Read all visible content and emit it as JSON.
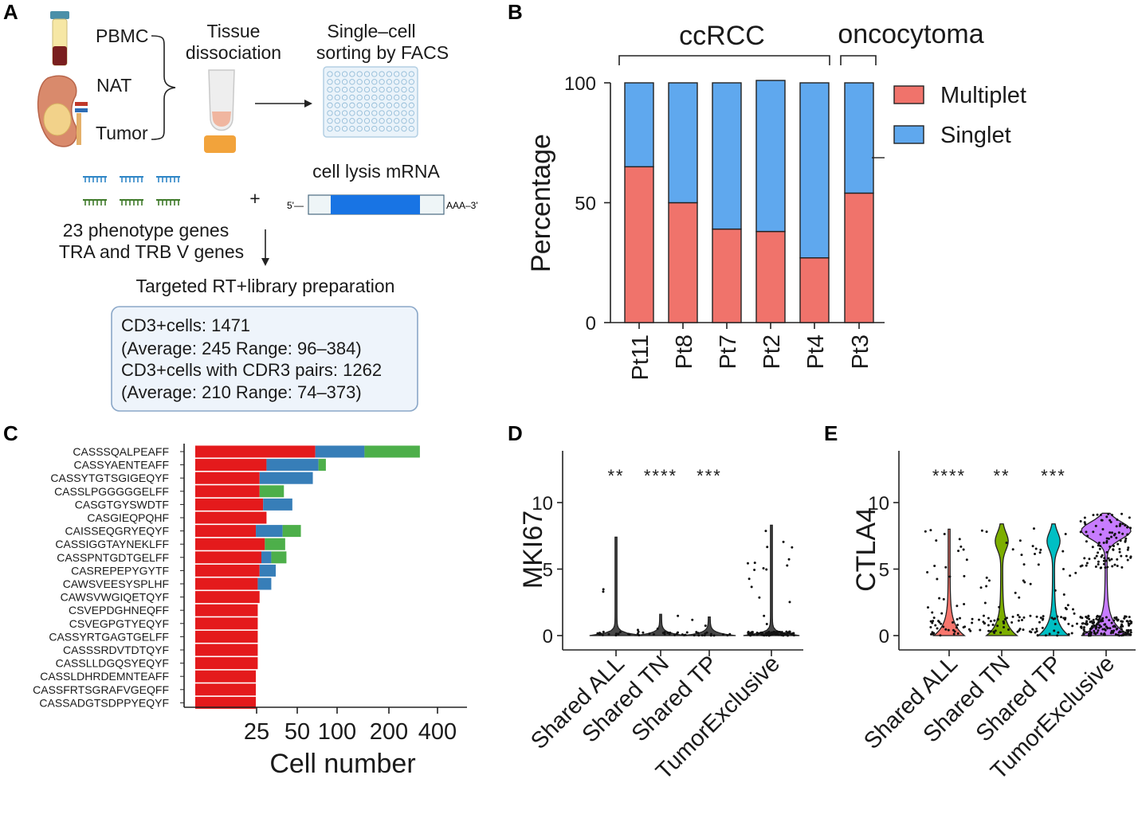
{
  "panels": {
    "a": "A",
    "b": "B",
    "c": "C",
    "d": "D",
    "e": "E"
  },
  "panel_a": {
    "sources": [
      "PBMC",
      "NAT",
      "Tumor"
    ],
    "step1": [
      "Tissue",
      "dissociation"
    ],
    "step2": [
      "Single–cell",
      "sorting by FACS"
    ],
    "lysis_label": "cell lysis mRNA",
    "prime5": "5'—",
    "prime3": "AAA–3'",
    "plus": "+",
    "genes": [
      "23 phenotype genes",
      "TRA and TRB V genes"
    ],
    "prep": "Targeted RT+library preparation",
    "summary": [
      "CD3+cells:  1471",
      "(Average:  245 Range: 96–384)",
      "CD3+cells  with CDR3 pairs: 1262",
      "(Average:  210 Range: 74–373)"
    ]
  },
  "colors": {
    "multiplet": "#f0736b",
    "singlet": "#5fa8ee",
    "c_red": "#e41a1c",
    "c_blue": "#377eb8",
    "c_green": "#4daf4a",
    "violin_all": "#f8766d",
    "violin_tn": "#7cae00",
    "violin_tp": "#00bfc4",
    "violin_te": "#c77cff"
  },
  "chart_data": [
    {
      "type": "bar",
      "title": "",
      "group_labels": [
        "ccRCC",
        "oncocytoma"
      ],
      "categories": [
        "Pt11",
        "Pt8",
        "Pt7",
        "Pt2",
        "Pt4",
        "Pt3"
      ],
      "series": [
        {
          "name": "Multiplet",
          "values": [
            65,
            50,
            39,
            38,
            27,
            54
          ]
        },
        {
          "name": "Singlet",
          "values": [
            35,
            50,
            61,
            63,
            73,
            46
          ]
        }
      ],
      "ylabel": "Percentage",
      "yticks": [
        "0",
        "50",
        "100"
      ],
      "ylim": [
        0,
        100
      ]
    },
    {
      "type": "bar",
      "orientation": "horizontal",
      "xlabel": "Cell number",
      "xticks": [
        "25",
        "50",
        "100",
        "200",
        "400"
      ],
      "xscale": "log",
      "categories": [
        "CASSSQALPEAFF",
        "CASSYAENTEAFF",
        "CASSYTGTSGIGEQYF",
        "CASSLPGGGGGELFF",
        "CASGTGYSWDTF",
        "CASGIEQPQHF",
        "CAISSEQGRYEQYF",
        "CASSIGGTAYNEKLFF",
        "CASSPNTGDTGELFF",
        "CASREPEPYGYTF",
        "CAWSVEESYSPLHF",
        "CAWSVWGIQETQYF",
        "CSVEPDGHNEQFF",
        "CSVEGPGTYEQYF",
        "CASSYRTGAGTGELFF",
        "CASSSRDVTDTQYF",
        "CASSLLDGQSYEQYF",
        "CASSLDHRDEMNTEAFF",
        "CASSFRTSGRAFVGEQFF",
        "CASSADGTSDPPYEQYF"
      ],
      "series": [
        {
          "name": "red",
          "values": [
            70,
            27,
            23,
            23,
            25,
            27,
            21,
            26,
            24,
            23,
            22,
            23,
            22,
            22,
            22,
            22,
            22,
            21,
            21,
            21
          ]
        },
        {
          "name": "blue",
          "values": [
            88,
            47,
            44,
            0,
            21,
            0,
            17,
            0,
            6,
            10,
            8,
            0,
            0,
            0,
            0,
            0,
            0,
            0,
            0,
            0
          ]
        },
        {
          "name": "green",
          "values": [
            212,
            10,
            0,
            16,
            0,
            0,
            16,
            14,
            11,
            0,
            0,
            0,
            0,
            0,
            0,
            0,
            0,
            0,
            0,
            0
          ]
        }
      ]
    },
    {
      "type": "violin",
      "ylabel": "MKI67",
      "yticks": [
        "0",
        "5",
        "10"
      ],
      "ylim": [
        0,
        14
      ],
      "categories": [
        "Shared ALL",
        "Shared TN",
        "Shared TP",
        "TumorExclusive"
      ],
      "significance": [
        "**",
        "****",
        "***",
        ""
      ],
      "max_values": [
        7.4,
        1.6,
        1.4,
        8.3
      ]
    },
    {
      "type": "violin",
      "ylabel": "CTLA4",
      "yticks": [
        "0",
        "5",
        "10"
      ],
      "ylim": [
        0,
        14
      ],
      "categories": [
        "Shared ALL",
        "Shared TN",
        "Shared TP",
        "TumorExclusive"
      ],
      "significance": [
        "****",
        "**",
        "***",
        ""
      ],
      "max_values": [
        8.0,
        8.4,
        8.4,
        9.2
      ]
    }
  ]
}
